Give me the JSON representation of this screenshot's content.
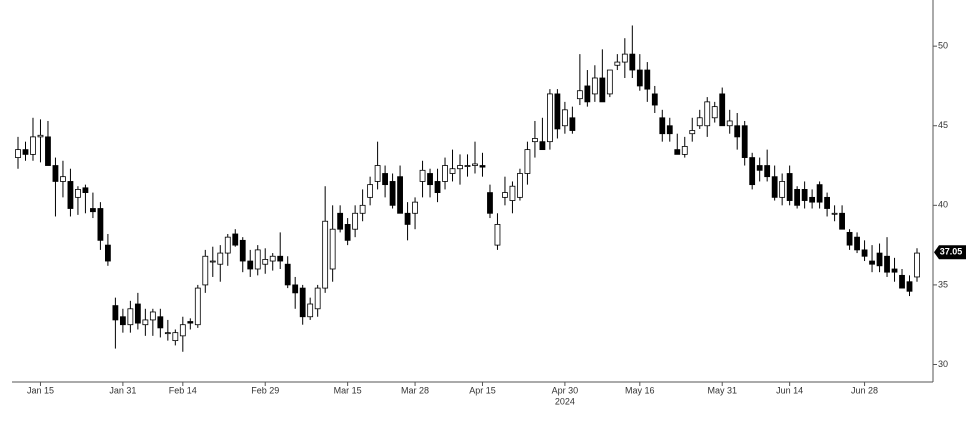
{
  "chart_data": {
    "type": "candlestick",
    "categories": [
      null,
      null,
      null,
      "Jan 15",
      null,
      null,
      null,
      null,
      null,
      null,
      null,
      null,
      null,
      null,
      "Jan 31",
      null,
      null,
      null,
      null,
      null,
      null,
      null,
      "Feb 14",
      null,
      null,
      null,
      null,
      null,
      null,
      null,
      null,
      null,
      null,
      "Feb 29",
      null,
      null,
      null,
      null,
      null,
      null,
      null,
      null,
      null,
      null,
      "Mar 15",
      null,
      null,
      null,
      null,
      null,
      null,
      null,
      null,
      "Mar 28",
      null,
      null,
      null,
      null,
      null,
      null,
      null,
      null,
      "Apr 15",
      null,
      null,
      null,
      null,
      null,
      null,
      null,
      null,
      null,
      null,
      "Apr 30",
      null,
      null,
      null,
      null,
      null,
      null,
      null,
      null,
      null,
      "May 16",
      null,
      null,
      null,
      null,
      null,
      null,
      null,
      null,
      null,
      null,
      "May 31",
      null,
      null,
      null,
      null,
      null,
      null,
      null,
      null,
      "Jun 14",
      null,
      null,
      null,
      null,
      null,
      null,
      null,
      null,
      null,
      "Jun 28",
      null,
      null,
      null,
      null,
      null,
      null,
      null
    ],
    "open": [
      43,
      43.5,
      43.2,
      44.3,
      44.3,
      42.5,
      41.5,
      41.5,
      40.5,
      41.1,
      39.8,
      39.8,
      37.5,
      33.7,
      33,
      32.5,
      33.8,
      32.5,
      32.8,
      33,
      32,
      31.5,
      31.8,
      32.7,
      32.5,
      35,
      36.5,
      36.3,
      37,
      38.2,
      37.8,
      36.5,
      36,
      36.3,
      36.5,
      36.8,
      36.3,
      35,
      34.8,
      33,
      33.5,
      34.8,
      36,
      39.5,
      38.8,
      38.5,
      39.5,
      40.5,
      41.5,
      42,
      41.5,
      41.8,
      39.5,
      39.5,
      41.5,
      42,
      41.5,
      41.5,
      42,
      42.3,
      42.5,
      42.5,
      42.5,
      40.8,
      37.5,
      40.5,
      40.3,
      40.5,
      42,
      44,
      44,
      44,
      47,
      45,
      45.5,
      46.7,
      47.5,
      47,
      48,
      47,
      48.8,
      49,
      49.5,
      48.5,
      48.5,
      47,
      45.5,
      45,
      43.5,
      43.2,
      44.5,
      45,
      45,
      45.5,
      47,
      45,
      45,
      45,
      43,
      42.5,
      42.5,
      41.8,
      40.5,
      42,
      41,
      41,
      40.5,
      41.3,
      40.5,
      39.5,
      39.5,
      38.3,
      38,
      37.2,
      36.5,
      37,
      36.8,
      36,
      35.6,
      35.2,
      35.5
    ],
    "high": [
      44.3,
      44,
      45.5,
      45.4,
      45.3,
      43,
      42.8,
      42.3,
      41.2,
      41.3,
      40.8,
      40.2,
      38.2,
      34.2,
      33.5,
      34,
      34.5,
      33.5,
      33.5,
      33.5,
      32.8,
      32.2,
      33,
      32.9,
      35,
      37.2,
      37.4,
      37.5,
      38.2,
      38.5,
      38,
      37.2,
      37.5,
      37.3,
      37,
      38.3,
      36.8,
      35.5,
      35,
      34.2,
      35,
      41.2,
      40,
      40,
      39.2,
      40,
      41,
      41.8,
      44,
      42.5,
      42,
      42.5,
      40.2,
      40.5,
      42.8,
      42.3,
      42.3,
      43,
      43.5,
      43.2,
      43.2,
      44,
      43.3,
      41.3,
      39.5,
      41.8,
      41.5,
      42.3,
      44,
      45.3,
      45.5,
      47.3,
      47.3,
      46.5,
      46.2,
      49.5,
      48.5,
      48.8,
      49.8,
      48.5,
      49.5,
      50.5,
      51.3,
      49.5,
      49,
      47.5,
      46,
      45.5,
      44.5,
      44.3,
      45.5,
      46,
      46.8,
      46.5,
      47.4,
      46,
      45.8,
      45.3,
      43.3,
      43,
      43.5,
      42.5,
      42,
      42.5,
      41.2,
      41.5,
      41,
      41.5,
      40.8,
      40,
      40,
      38.5,
      38.3,
      37.8,
      37.5,
      37.6,
      38,
      36.7,
      36,
      35.6,
      37.3
    ],
    "low": [
      42.3,
      42.8,
      42.8,
      42.7,
      42.5,
      39.3,
      40.5,
      39.3,
      39.4,
      39.5,
      39.2,
      37.2,
      36.2,
      31,
      32,
      32,
      32.2,
      31.8,
      31.8,
      31.7,
      31.5,
      31.2,
      30.8,
      32.2,
      32.3,
      34.5,
      35.5,
      35.2,
      36.2,
      37.4,
      35.8,
      35.5,
      35.6,
      35.7,
      35.9,
      36,
      34.8,
      33.5,
      32.5,
      32.8,
      33,
      34.5,
      35.2,
      38.3,
      37.5,
      38,
      39,
      40,
      41,
      40.5,
      39.8,
      39.5,
      37.8,
      38.5,
      40.5,
      40.5,
      40.2,
      41,
      41.5,
      41.3,
      41.8,
      42,
      41.8,
      39.2,
      37.2,
      40,
      39.5,
      40.3,
      41.3,
      43,
      43.5,
      43.5,
      44.2,
      44.5,
      44.5,
      46.3,
      46.2,
      46.5,
      46.5,
      46.8,
      48.5,
      48,
      48,
      47.2,
      46.5,
      45.8,
      44,
      44,
      43.2,
      43,
      44,
      44.8,
      44.3,
      45.2,
      45,
      44.5,
      43.5,
      42.5,
      41,
      41.5,
      41.5,
      40.3,
      40,
      40,
      39.8,
      39.8,
      39.8,
      39.8,
      39.3,
      39,
      38.5,
      37.2,
      37,
      36.5,
      35.8,
      35.8,
      35.5,
      35.2,
      34.8,
      34.3,
      35.2
    ],
    "close": [
      43.5,
      43.2,
      44.3,
      44.4,
      42.5,
      41.5,
      41.8,
      39.8,
      41,
      40.8,
      39.6,
      37.8,
      36.5,
      32.8,
      32.5,
      33.5,
      32.6,
      32.8,
      33.3,
      32.3,
      32,
      32,
      32.5,
      32.6,
      34.8,
      36.8,
      36.5,
      37,
      38,
      37.5,
      36.5,
      36,
      37.2,
      36.6,
      36.8,
      36.5,
      35,
      34.5,
      33,
      33.8,
      34.8,
      39,
      38.5,
      38.5,
      37.8,
      39.5,
      40,
      41.3,
      42.5,
      41.3,
      40,
      39.5,
      38.8,
      40.2,
      42.2,
      41.3,
      40.8,
      42.5,
      42.3,
      42.5,
      42.5,
      42.6,
      42.4,
      39.5,
      38.8,
      40.8,
      41.2,
      42,
      43.5,
      44.2,
      43.5,
      47,
      44.8,
      46,
      44.7,
      47.2,
      46.5,
      48,
      46.5,
      48.5,
      49,
      49.5,
      48.5,
      47.5,
      47.3,
      46.3,
      44.5,
      44.5,
      43.2,
      43.7,
      44.7,
      45.5,
      46.5,
      46.2,
      45,
      45.3,
      44.3,
      43,
      41.3,
      42.2,
      41.8,
      40.5,
      41.5,
      40.3,
      40,
      40.3,
      40.2,
      40.2,
      39.8,
      39.5,
      38.5,
      37.5,
      37.2,
      36.8,
      36.3,
      36.2,
      35.8,
      35.8,
      34.8,
      34.6,
      37
    ],
    "up_color": "#ffffff",
    "down_color": "#000000",
    "x_year_label": "2024",
    "ylim": [
      28.9,
      52.9
    ],
    "yticks": [
      30,
      35,
      40,
      45,
      50
    ],
    "last_value": 37.05
  }
}
